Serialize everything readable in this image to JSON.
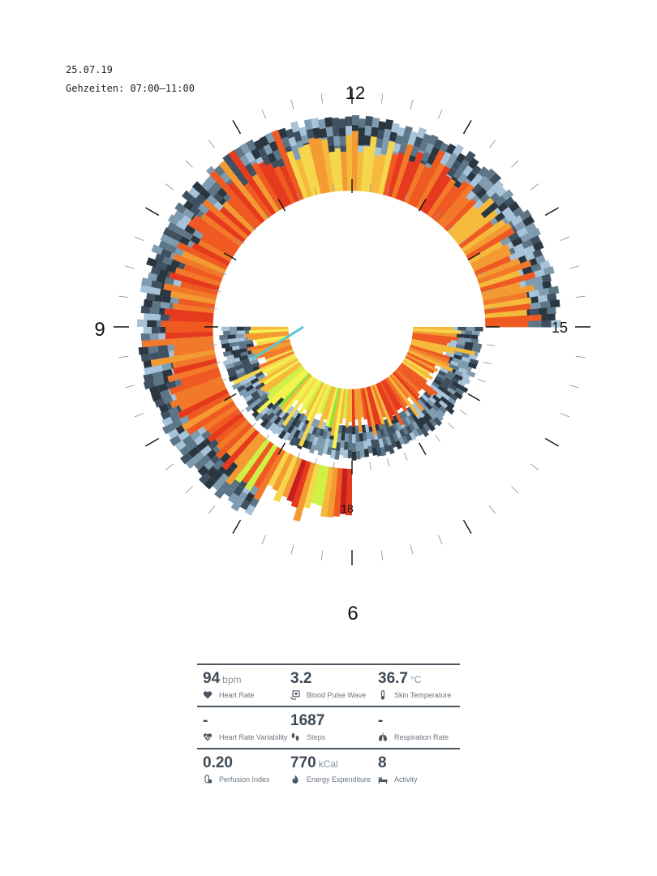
{
  "header": {
    "date": "25.07.19",
    "hours": "Gehzeiten: 07:00–11:00"
  },
  "chart_data": {
    "type": "radial-spiral-heatmap",
    "hour_labels": [
      {
        "hour": 12,
        "text": "12"
      },
      {
        "hour": 15,
        "text": "15"
      },
      {
        "hour": 18,
        "text": "18"
      },
      {
        "hour": 9,
        "text": "9"
      },
      {
        "hour": 6,
        "text": "6"
      }
    ],
    "start_hour": 6,
    "end_hour": 21,
    "palette_outer": [
      "#2a3640",
      "#3f5160",
      "#5c7688",
      "#7f9bb0",
      "#a6c3da"
    ],
    "palette_inner": [
      "#c61f1f",
      "#e63a1f",
      "#ef5a22",
      "#f2792a",
      "#f39a32",
      "#f5b93c",
      "#f6d64a",
      "#f3f24e",
      "#cff045",
      "#8ee53a"
    ]
  },
  "stats": [
    [
      {
        "value": "94",
        "unit": "bpm",
        "label": "Heart Rate",
        "icon": "heart-icon"
      },
      {
        "value": "3.2",
        "unit": "",
        "label": "Blood Pulse Wave",
        "icon": "pulse-monitor-icon"
      },
      {
        "value": "36.7",
        "unit": "°C",
        "label": "Skin Temperature",
        "icon": "thermometer-icon"
      }
    ],
    [
      {
        "value": "-",
        "unit": "",
        "label": "Heart Rate Variability",
        "icon": "heart-wave-icon"
      },
      {
        "value": "1687",
        "unit": "",
        "label": "Steps",
        "icon": "footsteps-icon"
      },
      {
        "value": "-",
        "unit": "",
        "label": "Respiration Rate",
        "icon": "lungs-icon"
      }
    ],
    [
      {
        "value": "0.20",
        "unit": "",
        "label": "Perfusion Index",
        "icon": "finger-sensor-icon"
      },
      {
        "value": "770",
        "unit": "kCal",
        "label": "Energy Expenditure",
        "icon": "flame-icon"
      },
      {
        "value": "8",
        "unit": "",
        "label": "Activity",
        "icon": "bed-icon"
      }
    ]
  ]
}
